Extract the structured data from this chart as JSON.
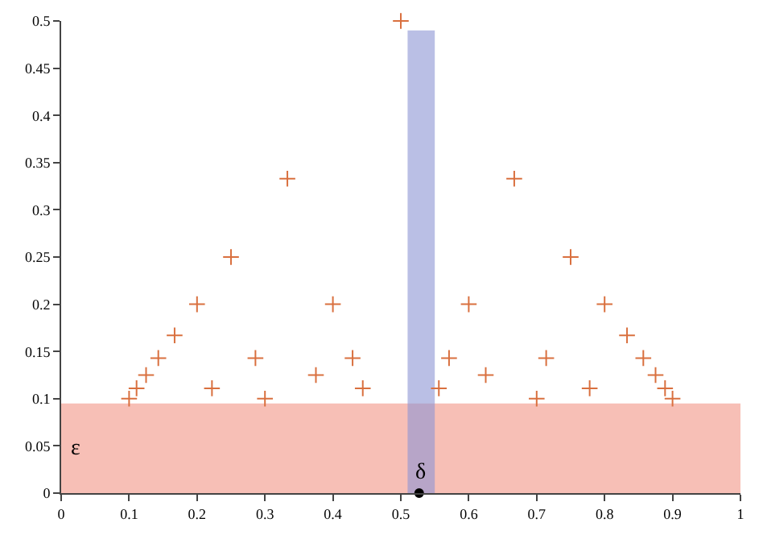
{
  "chart_data": {
    "type": "scatter",
    "marker": "cross",
    "grid": false,
    "series": [
      {
        "color": "#d9703f",
        "x": [
          0.5,
          0.333,
          0.667,
          0.25,
          0.75,
          0.2,
          0.4,
          0.6,
          0.8,
          0.167,
          0.833,
          0.143,
          0.286,
          0.429,
          0.571,
          0.714,
          0.857,
          0.125,
          0.375,
          0.625,
          0.875,
          0.111,
          0.222,
          0.444,
          0.556,
          0.778,
          0.889,
          0.1,
          0.3,
          0.7,
          0.9
        ],
        "values": [
          0.5,
          0.333,
          0.333,
          0.25,
          0.25,
          0.2,
          0.2,
          0.2,
          0.2,
          0.167,
          0.167,
          0.143,
          0.143,
          0.143,
          0.143,
          0.143,
          0.143,
          0.125,
          0.125,
          0.125,
          0.125,
          0.111,
          0.111,
          0.111,
          0.111,
          0.111,
          0.111,
          0.1,
          0.1,
          0.1,
          0.1
        ]
      },
      {
        "color": "#000000",
        "marker": "circle",
        "x": [
          0.527
        ],
        "values": [
          0
        ]
      }
    ],
    "bands": [
      {
        "axis": "y",
        "from": 0,
        "to": 0.095,
        "label": "ε",
        "color": "#f08a7a"
      },
      {
        "axis": "x",
        "from": 0.51,
        "to": 0.55,
        "label": "δ",
        "color": "#8c94d4"
      }
    ],
    "xlim": [
      0,
      1
    ],
    "xticks": [
      0,
      0.1,
      0.2,
      0.3,
      0.4,
      0.5,
      0.6,
      0.7,
      0.8,
      0.9,
      1
    ],
    "ylim": [
      0,
      0.5
    ],
    "yticks": [
      0,
      0.05,
      0.1,
      0.15,
      0.2,
      0.25,
      0.3,
      0.35,
      0.4,
      0.45,
      0.5
    ]
  }
}
